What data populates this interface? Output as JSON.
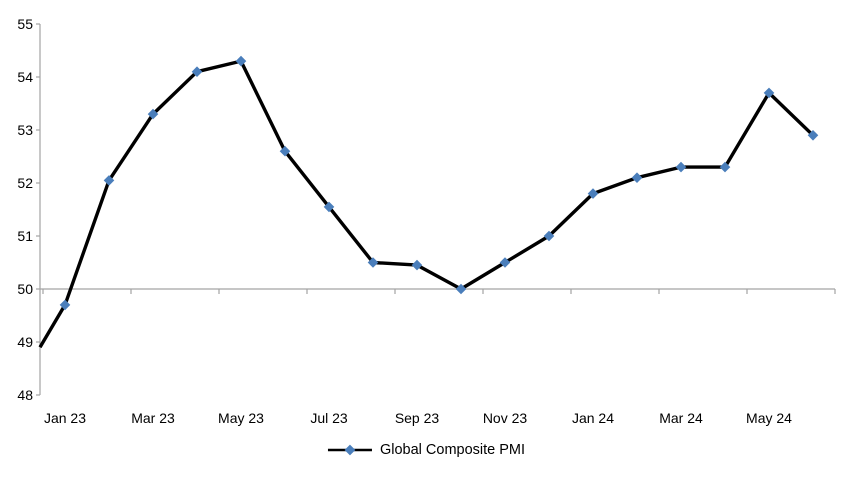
{
  "chart_data": {
    "type": "line",
    "title": "",
    "legend": [
      "Global Composite PMI"
    ],
    "legend_position": "bottom-center",
    "categories": [
      "Jan 23",
      "Feb 23",
      "Mar 23",
      "Apr 23",
      "May 23",
      "Jun 23",
      "Jul 23",
      "Aug 23",
      "Sep 23",
      "Oct 23",
      "Nov 23",
      "Dec 23",
      "Jan 24",
      "Feb 24",
      "Mar 24",
      "Apr 24",
      "May 24",
      "Jun 24"
    ],
    "values": [
      49.7,
      52.05,
      53.3,
      54.1,
      54.3,
      52.6,
      51.55,
      50.5,
      50.45,
      50.0,
      50.5,
      51.0,
      51.8,
      52.1,
      52.3,
      52.3,
      53.7,
      52.9
    ],
    "visible_x_tick_labels": [
      "Jan 23",
      "Mar 23",
      "May 23",
      "Jul 23",
      "Sep 23",
      "Nov 23",
      "Jan 24",
      "Mar 24",
      "May 24"
    ],
    "x_label_interval": 2,
    "y_ticks": [
      55,
      54,
      53,
      52,
      51,
      50,
      49,
      48
    ],
    "ylim": [
      48,
      55
    ],
    "x_axis_cross_value": 50,
    "leading_edge": {
      "value_at_left_edge": 48.9,
      "description": "series line enters from the left plot edge without a marker"
    },
    "grid": false,
    "marker_shape": "diamond",
    "colors": {
      "series_line": "#000000",
      "marker": "#4a7ebb",
      "axis": "#a3a3a3",
      "text": "#000000",
      "background": "#ffffff"
    }
  }
}
